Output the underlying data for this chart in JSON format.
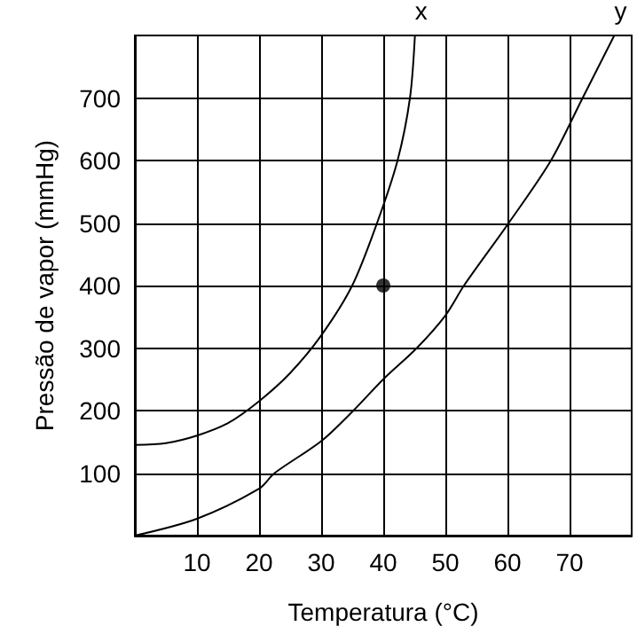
{
  "chart_data": {
    "type": "line",
    "xlabel": "Temperatura (°C)",
    "ylabel": "Pressão de vapor (mmHg)",
    "xlim": [
      0,
      80
    ],
    "ylim": [
      0,
      800
    ],
    "xticks": [
      10,
      20,
      30,
      40,
      50,
      60,
      70
    ],
    "yticks": [
      100,
      200,
      300,
      400,
      500,
      600,
      700
    ],
    "grid": true,
    "legend": false,
    "marker": "none",
    "line_style": "solid",
    "series": [
      {
        "name": "x",
        "color": "#000000",
        "x": [
          0,
          5,
          10,
          15,
          20,
          25,
          30,
          35,
          39,
          42.3,
          44.3,
          45.1
        ],
        "values": [
          145,
          148,
          160,
          180,
          215,
          260,
          320,
          400,
          500,
          600,
          700,
          800
        ]
      },
      {
        "name": "y",
        "color": "#000000",
        "x": [
          0,
          10,
          20,
          22.5,
          30,
          35.2,
          40,
          45.4,
          50,
          53,
          60.2,
          67,
          72.1,
          77.2
        ],
        "values": [
          0,
          27,
          75,
          100,
          151,
          200,
          250,
          300,
          352,
          400,
          500,
          600,
          700,
          800
        ]
      },
      {
        "type": "scatter",
        "marker": "circle",
        "color": "#000000",
        "x": [
          40
        ],
        "values": [
          400
        ]
      }
    ]
  }
}
